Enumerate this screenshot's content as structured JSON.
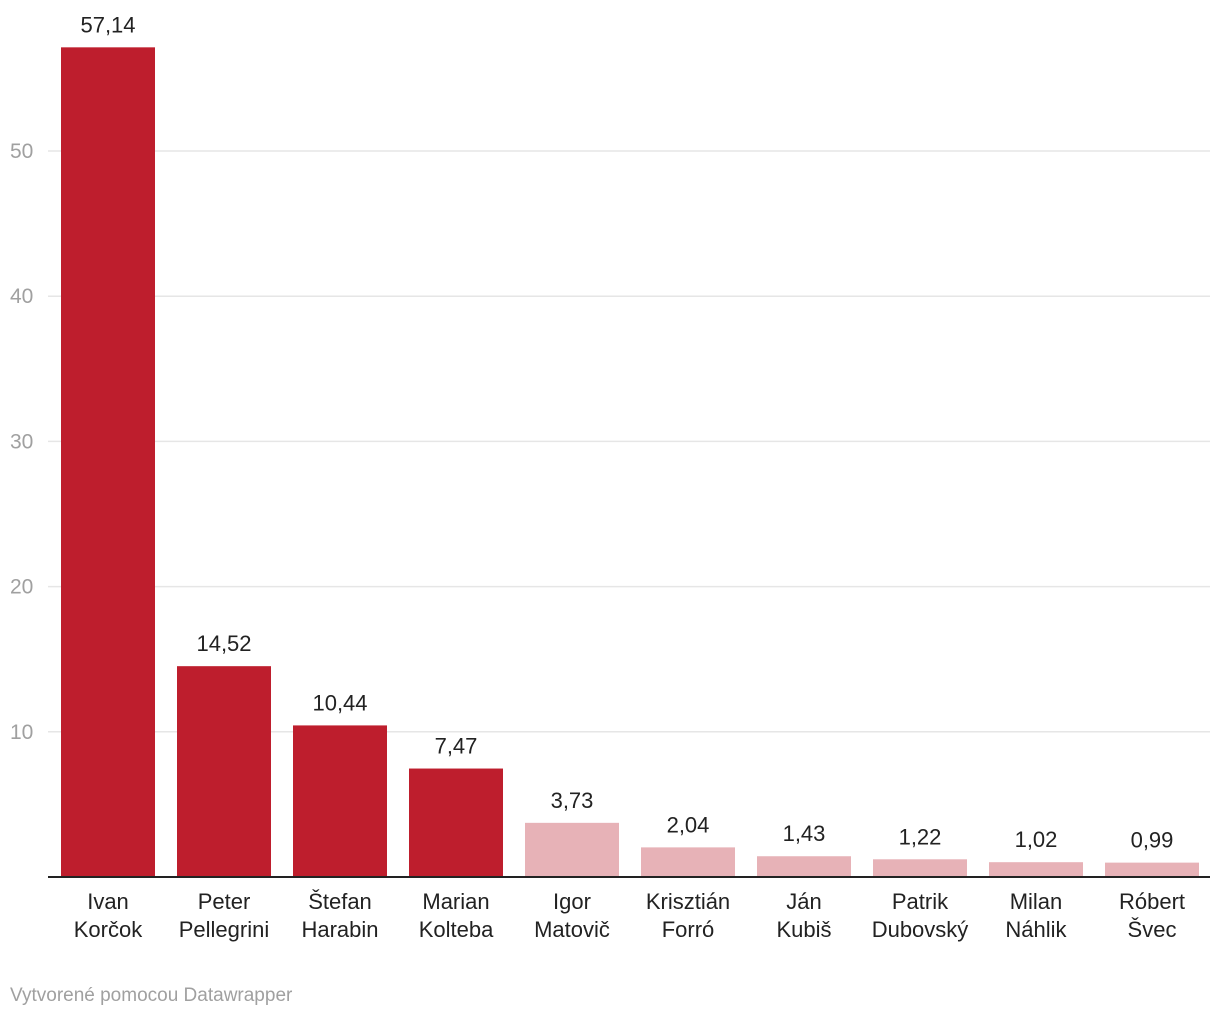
{
  "chart_data": {
    "type": "bar",
    "categories": [
      "Ivan Korčok",
      "Peter Pellegrini",
      "Štefan Harabin",
      "Marian Kolteba",
      "Igor Matovič",
      "Krisztián Forró",
      "Ján Kubiš",
      "Patrik Dubovský",
      "Milan Náhlik",
      "Róbert Švec"
    ],
    "category_lines": [
      [
        "Ivan",
        "Korčok"
      ],
      [
        "Peter",
        "Pellegrini"
      ],
      [
        "Štefan",
        "Harabin"
      ],
      [
        "Marian",
        "Kolteba"
      ],
      [
        "Igor",
        "Matovič"
      ],
      [
        "Krisztián",
        "Forró"
      ],
      [
        "Ján",
        "Kubiš"
      ],
      [
        "Patrik",
        "Dubovský"
      ],
      [
        "Milan",
        "Náhlik"
      ],
      [
        "Róbert",
        "Švec"
      ]
    ],
    "values": [
      57.14,
      14.52,
      10.44,
      7.47,
      3.73,
      2.04,
      1.43,
      1.22,
      1.02,
      0.99
    ],
    "value_labels": [
      "57,14",
      "14,52",
      "10,44",
      "7,47",
      "3,73",
      "2,04",
      "1,43",
      "1,22",
      "1,02",
      "0,99"
    ],
    "highlighted": [
      true,
      true,
      true,
      true,
      false,
      false,
      false,
      false,
      false,
      false
    ],
    "colors": {
      "highlight": "#be1e2d",
      "muted": "#e7b2b7",
      "grid": "#e6e6e6",
      "baseline": "#222222"
    },
    "yticks": [
      10,
      20,
      30,
      40,
      50
    ],
    "ylim": [
      0,
      60
    ],
    "grid": true,
    "legend": "none",
    "title": "",
    "xlabel": "",
    "ylabel": ""
  },
  "footer": {
    "credit": "Vytvorené pomocou Datawrapper"
  }
}
